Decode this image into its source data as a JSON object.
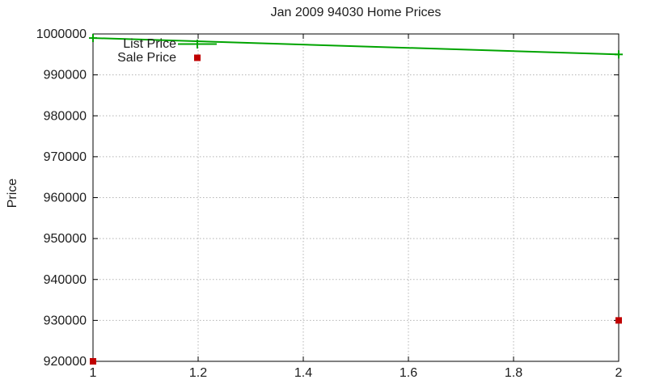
{
  "chart_data": {
    "type": "line",
    "title": "Jan 2009 94030 Home Prices",
    "xlabel": "",
    "ylabel": "Price",
    "xlim": [
      1,
      2
    ],
    "ylim": [
      920000,
      1000000
    ],
    "x_tick_values": [
      1,
      1.2,
      1.4,
      1.6,
      1.8,
      2
    ],
    "x_tick_labels": [
      "1",
      "1.2",
      "1.4",
      "1.6",
      "1.8",
      "2"
    ],
    "y_tick_values": [
      920000,
      930000,
      940000,
      950000,
      960000,
      970000,
      980000,
      990000,
      1000000
    ],
    "y_tick_labels": [
      "920000",
      "930000",
      "940000",
      "950000",
      "960000",
      "970000",
      "980000",
      "990000",
      "1000000"
    ],
    "grid": "dotted",
    "legend_position": "inside-top-left",
    "series": [
      {
        "name": "List Price",
        "style": "line-with-points",
        "marker": "plus",
        "color": "#00a400",
        "x": [
          1,
          2
        ],
        "y": [
          999000,
          995000
        ]
      },
      {
        "name": "Sale Price",
        "style": "points",
        "marker": "filled-square",
        "color": "#c00000",
        "x": [
          1,
          2
        ],
        "y": [
          920000,
          930000
        ]
      }
    ],
    "colors": {
      "grid": "#b4b4b4",
      "axis": "#000000",
      "text": "#1c1c1c",
      "background": "#ffffff"
    }
  }
}
